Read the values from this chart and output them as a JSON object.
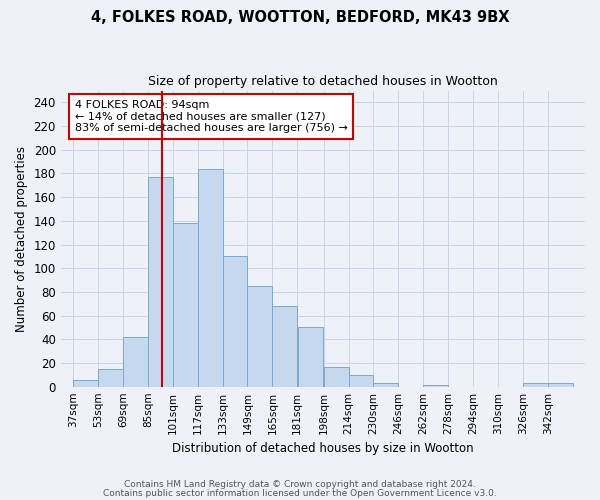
{
  "title": "4, FOLKES ROAD, WOOTTON, BEDFORD, MK43 9BX",
  "subtitle": "Size of property relative to detached houses in Wootton",
  "xlabel": "Distribution of detached houses by size in Wootton",
  "ylabel": "Number of detached properties",
  "footnote1": "Contains HM Land Registry data © Crown copyright and database right 2024.",
  "footnote2": "Contains public sector information licensed under the Open Government Licence v3.0.",
  "annotation_line1": "4 FOLKES ROAD: 94sqm",
  "annotation_line2": "← 14% of detached houses are smaller (127)",
  "annotation_line3": "83% of semi-detached houses are larger (756) →",
  "bin_edges": [
    37,
    53,
    69,
    85,
    101,
    117,
    133,
    149,
    165,
    181,
    198,
    214,
    230,
    246,
    262,
    278,
    294,
    310,
    326,
    342,
    358
  ],
  "bin_heights": [
    6,
    15,
    42,
    177,
    138,
    184,
    110,
    85,
    68,
    50,
    17,
    10,
    3,
    0,
    1,
    0,
    0,
    0,
    3,
    3
  ],
  "bar_color": "#c5d8ee",
  "bar_edge_color": "#7aaad0",
  "vline_color": "#cc0000",
  "vline_x": 94,
  "annotation_box_color": "#cc0000",
  "grid_color": "#c8d4e8",
  "background_color": "#eef2f8",
  "ylim": [
    0,
    250
  ],
  "yticks": [
    0,
    20,
    40,
    60,
    80,
    100,
    120,
    140,
    160,
    180,
    200,
    220,
    240
  ]
}
